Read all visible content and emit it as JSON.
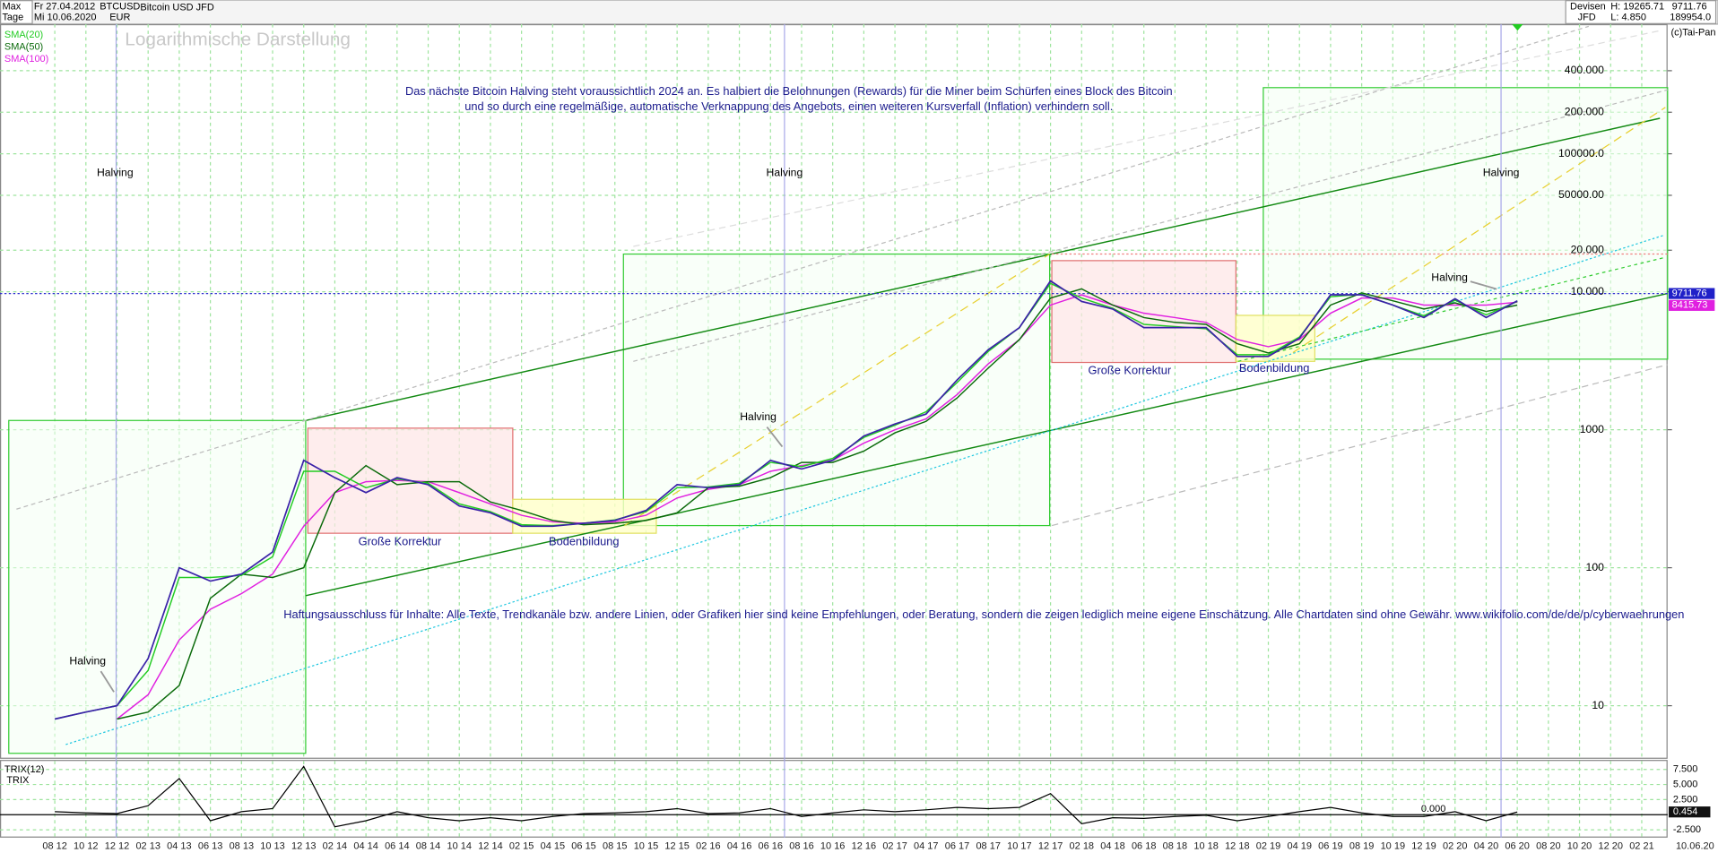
{
  "header": {
    "period": "Max",
    "unit": "Tage",
    "from": "Fr 27.04.2012",
    "to": "Mi 10.06.2020",
    "symbol": "BTCUSD",
    "currency": "EUR",
    "name": "Bitcoin USD JFD",
    "market": "Devisen",
    "exchange": "JFD",
    "high": "H: 19265.71",
    "low": "L: 4.850",
    "volume": "189954.0",
    "copyright": "(c)Tai-Pan"
  },
  "annotations": {
    "title_line1": "Das nächste Bitcoin Halving steht voraussichtlich 2024 an. Es halbiert die Belohnungen (Rewards) für die Miner beim Schürfen eines Block des Bitcoin",
    "title_line2": "und so durch eine regelmäßige, automatische Verknappung des Angebots, einen weiteren Kursverfall (Inflation) verhindern soll.",
    "halving": [
      "Halving",
      "Halving",
      "Halving",
      "Halving",
      "Halving",
      "Halving"
    ],
    "correction": [
      "Große Korrektur",
      "Große Korrektur"
    ],
    "bottom": [
      "Bodenbildung",
      "Bodenbildung"
    ],
    "disclaimer": "Haftungsausschluss für Inhalte: Alle Texte, Trendkanäle bzw. andere Linien, oder Grafiken hier sind keine Empfehlungen, oder Beratung, sondern die zeigen lediglich meine eigene Einschätzung. Alle Chartdaten sind ohne Gewähr.  www.wikifolio.com/de/de/p/cyberwaehrungen"
  },
  "date_label": "10.06.20",
  "chart_data": [
    {
      "type": "line",
      "subtitle": "Logarithmische Darstellung",
      "log_scale": true,
      "grid": true,
      "legend": "top-left",
      "categories": [
        "08 12",
        "10 12",
        "12 12",
        "02 13",
        "04 13",
        "06 13",
        "08 13",
        "10 13",
        "12 13",
        "02 14",
        "04 14",
        "06 14",
        "08 14",
        "10 14",
        "12 14",
        "02 15",
        "04 15",
        "06 15",
        "08 15",
        "10 15",
        "12 15",
        "02 16",
        "04 16",
        "06 16",
        "08 16",
        "10 16",
        "12 16",
        "02 17",
        "04 17",
        "06 17",
        "08 17",
        "10 17",
        "12 17",
        "02 18",
        "04 18",
        "06 18",
        "08 18",
        "10 18",
        "12 18",
        "02 19",
        "04 19",
        "06 19",
        "08 19",
        "10 19",
        "12 19",
        "02 20",
        "04 20",
        "06 20",
        "08 20",
        "10 20",
        "12 20",
        "02 21"
      ],
      "values": [
        8,
        9,
        10,
        22,
        100,
        80,
        90,
        130,
        600,
        450,
        350,
        450,
        400,
        280,
        250,
        200,
        200,
        210,
        220,
        260,
        400,
        380,
        400,
        600,
        520,
        600,
        900,
        1100,
        1300,
        2300,
        3800,
        5500,
        12000,
        8500,
        7500,
        5500,
        5500,
        5500,
        3400,
        3400,
        4600,
        9500,
        9500,
        8000,
        6500,
        8900,
        6500,
        8600,
        null,
        null,
        null,
        null
      ],
      "color": "#3a22a8",
      "series": [
        {
          "name": "SMA(20)",
          "color": "#22cc22",
          "values": [
            8,
            9,
            10,
            18,
            85,
            85,
            88,
            120,
            500,
            500,
            380,
            440,
            410,
            290,
            255,
            205,
            202,
            210,
            222,
            255,
            380,
            385,
            410,
            580,
            540,
            620,
            880,
            1080,
            1350,
            2200,
            3700,
            5500,
            11500,
            9000,
            7600,
            5800,
            5600,
            5400,
            3500,
            3500,
            4700,
            9200,
            9600,
            8000,
            6700,
            8700,
            6800,
            8500,
            null,
            null,
            null,
            null
          ]
        },
        {
          "name": "SMA(50)",
          "color": "#0a6a0a",
          "values": [
            null,
            null,
            8,
            9,
            14,
            60,
            90,
            85,
            100,
            350,
            550,
            400,
            420,
            420,
            300,
            260,
            220,
            205,
            210,
            220,
            250,
            380,
            390,
            450,
            580,
            580,
            700,
            950,
            1150,
            1700,
            2800,
            4500,
            9000,
            10500,
            8000,
            6500,
            6000,
            5800,
            4200,
            3600,
            4200,
            8000,
            9800,
            8600,
            7500,
            8300,
            7200,
            8000,
            null,
            null,
            null,
            null
          ]
        },
        {
          "name": "SMA(100)",
          "color": "#e020e0",
          "values": [
            null,
            null,
            8,
            12,
            30,
            50,
            65,
            90,
            200,
            350,
            420,
            430,
            420,
            350,
            290,
            240,
            215,
            210,
            215,
            240,
            320,
            370,
            400,
            500,
            550,
            600,
            800,
            1000,
            1200,
            1800,
            3000,
            4500,
            8000,
            9500,
            8000,
            7000,
            6500,
            6000,
            4500,
            4000,
            4500,
            7000,
            9000,
            9000,
            8000,
            8000,
            8000,
            8400,
            null,
            null,
            null,
            null
          ]
        }
      ],
      "price_tags": [
        9711.76,
        8415.73
      ],
      "ylim": [
        4.2,
        870000
      ],
      "yticks": [
        10,
        100,
        1000,
        {
          "value": 10000,
          "label": "10.000"
        },
        {
          "value": 20000,
          "label": "20.000"
        },
        {
          "value": 50000,
          "label": "50000.00"
        },
        {
          "value": 100000,
          "label": "100000.0"
        },
        {
          "value": 200000,
          "label": "200.000"
        },
        {
          "value": 400000,
          "label": "400.000"
        }
      ]
    },
    {
      "type": "line",
      "title": "TRIX(12)",
      "grid": true,
      "series": [
        {
          "name": "TRIX",
          "color": "#000000",
          "values": [
            0.5,
            0.3,
            0.2,
            1.5,
            6,
            -1,
            0.5,
            1,
            8,
            -2,
            -1,
            0.5,
            -0.5,
            -1,
            -0.5,
            -1,
            -0.3,
            0.2,
            0.3,
            0.5,
            1,
            0.2,
            0.3,
            1,
            -0.3,
            0.3,
            0.8,
            0.5,
            0.8,
            1.2,
            1,
            1.2,
            3.5,
            -1.5,
            -0.5,
            -0.6,
            -0.3,
            -0.1,
            -1,
            -0.3,
            0.5,
            1.2,
            0.3,
            -0.3,
            -0.3,
            0.5,
            -1,
            0.45,
            null,
            null,
            null,
            null
          ]
        }
      ],
      "zero_line": {
        "value": 0,
        "label": "0.000"
      },
      "last_value": 0.454,
      "ylim": [
        -3.8,
        8.9
      ],
      "yticks": [
        {
          "value": 7.5,
          "label": "7.500"
        },
        {
          "value": 5,
          "label": "5.000"
        },
        {
          "value": 2.5,
          "label": "2.500"
        },
        {
          "value": -2.5,
          "label": "-2.500"
        }
      ]
    }
  ]
}
